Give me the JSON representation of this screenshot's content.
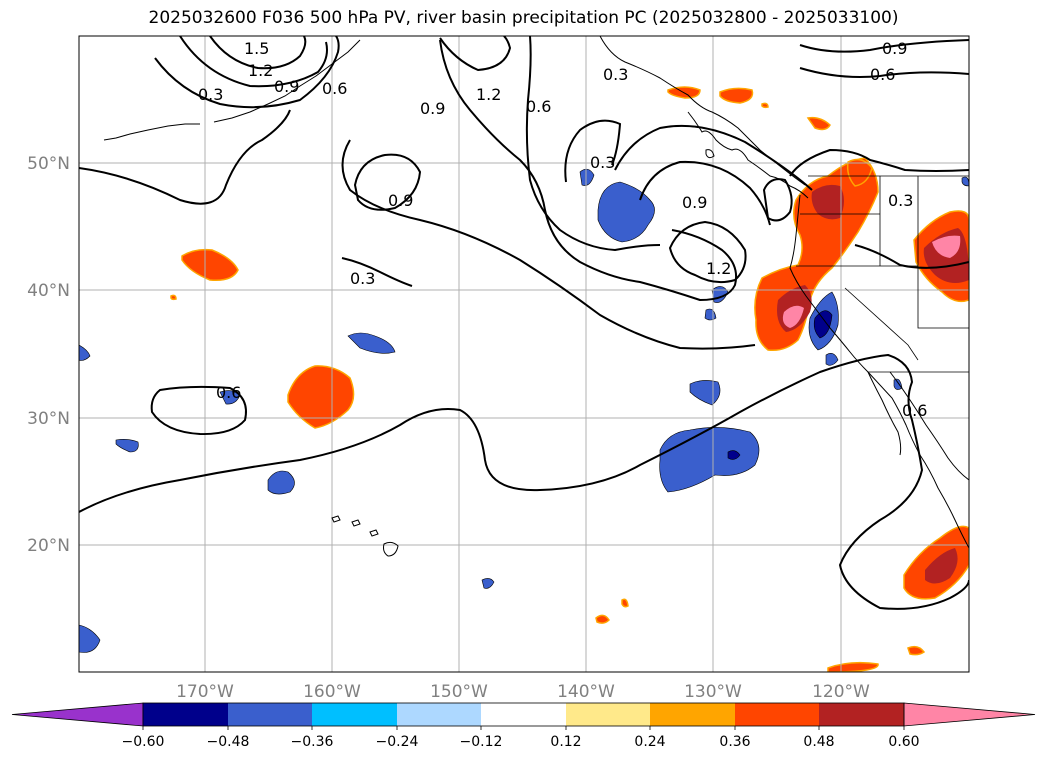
{
  "title": "2025032600 F036 500 hPa PV, river basin precipitation PC (2025032800 - 2025033100)",
  "map": {
    "lon_ticks": [
      "170°W",
      "160°W",
      "150°W",
      "140°W",
      "130°W",
      "120°W"
    ],
    "lat_ticks": [
      "50°N",
      "40°N",
      "30°N",
      "20°N"
    ],
    "grid": true,
    "contour_labels": [
      "1.5",
      "1.2",
      "0.9",
      "0.6",
      "0.3",
      "0.9",
      "1.2",
      "0.6",
      "0.3",
      "0.9",
      "0.6",
      "0.3",
      "0.9",
      "0.3",
      "1.2",
      "0.9",
      "0.3",
      "0.6",
      "0.6"
    ]
  },
  "colorbar": {
    "ticks": [
      "−0.60",
      "−0.48",
      "−0.36",
      "−0.24",
      "−0.12",
      "0.12",
      "0.24",
      "0.36",
      "0.48",
      "0.60"
    ],
    "colors": [
      "#9932cc",
      "#00008b",
      "#3a5fcd",
      "#00bfff",
      "#add8ff",
      "#ffffff",
      "#ffe98a",
      "#ffa500",
      "#ff4500",
      "#b22222",
      "#ff85a6",
      "#ff85a6"
    ]
  }
}
